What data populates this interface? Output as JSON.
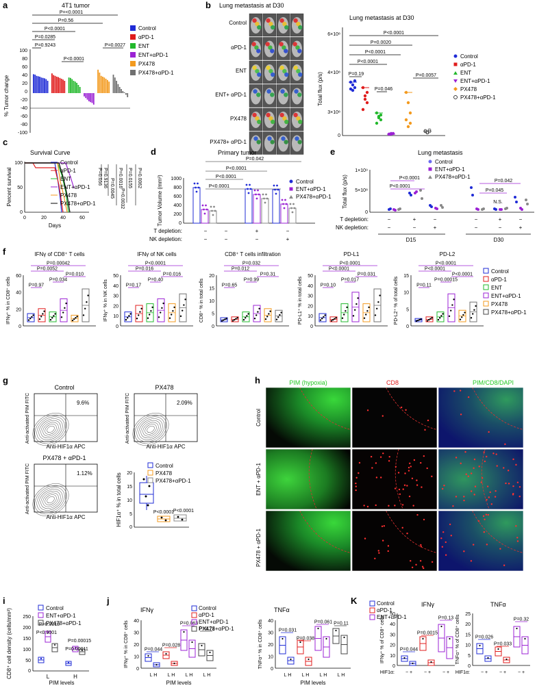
{
  "panels": {
    "a": {
      "label": "a",
      "title": "4T1 tumor",
      "ylabel": "% Tumor change",
      "yticks": [
        "100",
        "80",
        "60",
        "40",
        "20",
        "0",
        "-20",
        "-40",
        "-60",
        "-80",
        "-100"
      ],
      "pvalues": [
        "P=<0.0001",
        "P=0.56",
        "P<0.0001",
        "P=0.0285",
        "P=0.9243",
        "P<0.0001",
        "P=0.0027"
      ],
      "legend": [
        {
          "name": "Control",
          "color": "#1f2bd6"
        },
        {
          "name": "αPD-1",
          "color": "#e01c1c"
        },
        {
          "name": "ENT",
          "color": "#22b82c"
        },
        {
          "name": "ENT+αPD-1",
          "color": "#9b22d4"
        },
        {
          "name": "PX478",
          "color": "#f39a1e"
        },
        {
          "name": "PX478+αPD-1",
          "color": "#707070"
        }
      ],
      "waterfall": [
        {
          "group": 0,
          "values": [
            46,
            45,
            42,
            41,
            40,
            38,
            37,
            36,
            34,
            30
          ]
        },
        {
          "group": 1,
          "values": [
            48,
            44,
            42,
            40,
            39,
            37,
            35,
            33,
            30
          ]
        },
        {
          "group": 2,
          "values": [
            38,
            37,
            34,
            30,
            28,
            25,
            20,
            15
          ]
        },
        {
          "group": 3,
          "values": [
            -8,
            -12,
            -16,
            -20,
            -22,
            -24,
            -28
          ]
        },
        {
          "group": 4,
          "values": [
            57,
            50,
            42,
            40,
            38,
            35,
            32,
            28
          ]
        },
        {
          "group": 5,
          "values": [
            45,
            38,
            30,
            22,
            15,
            10,
            5,
            2,
            -4,
            -10
          ]
        }
      ]
    },
    "b": {
      "label": "b",
      "image_title": "Lung metastasis at D30",
      "row_labels": [
        "Control",
        "αPD-1",
        "ENT",
        "ENT+ αPD-1",
        "PX478",
        "PX478+ αPD-1"
      ],
      "chart_title": "Lung metastasis at D30",
      "ylabel": "Total flux (p/s)",
      "yticks": [
        "6×10⁸",
        "4×10⁸",
        "3×10⁸",
        "0"
      ],
      "pvalues": [
        "P<0.0001",
        "P=0.0020",
        "P<0.0001",
        "P<0.0001",
        "P=0.19",
        "P=0.046",
        "P=0.0057"
      ],
      "legend": [
        "Control",
        "αPD-1",
        "ENT",
        "ENT+αPD-1",
        "PX478",
        "PX478+αPD-1"
      ]
    },
    "c": {
      "label": "c",
      "title": "Survival Curve",
      "ylabel": "Percent survival",
      "xlabel": "Days",
      "yticks": [
        "100",
        "50",
        "0"
      ],
      "xticks": [
        "0",
        "20",
        "40",
        "60"
      ],
      "legend": [
        "Control",
        "αPD-1",
        "ENT",
        "ENT+αPD-1",
        "PX478",
        "PX478+αPD-1"
      ],
      "pvalues": [
        "P=0.056",
        "P=0.9136",
        "P=0.0045",
        "P=0.0016",
        "P=0.0155",
        "P=0.0032",
        "P=0.0062"
      ]
    },
    "d": {
      "label": "d",
      "title": "Primary tumor",
      "ylabel": "Tumor Volume (mm³)",
      "yticks": [
        "1000",
        "800",
        "600",
        "400",
        "200",
        "0"
      ],
      "pvalues": [
        "P=0.042",
        "P<0.0001",
        "P<0.0001",
        "P<0.0001"
      ],
      "legend": [
        "Control",
        "ENT+αPD-1",
        "PX478+αPD-1"
      ],
      "row_labels": [
        "T depletion:",
        "NK depletion:"
      ],
      "row_values": [
        [
          "−",
          "−",
          "+",
          "−"
        ],
        [
          "−",
          "−",
          "−",
          "+"
        ]
      ]
    },
    "e": {
      "label": "e",
      "title": "Lung metastasis",
      "ylabel": "Total flux (p/s)",
      "yticks": [
        "1×10⁹",
        "5×10⁸",
        "0"
      ],
      "pvalues": [
        "P<0.0001",
        "P<0.0001",
        "P=0.042",
        "P=0.045"
      ],
      "ns": "N.S.",
      "legend": [
        "Control",
        "ENT+αPD-1",
        "PX478+αPD-1"
      ],
      "row_labels": [
        "T depletion:",
        "NK depletion:"
      ],
      "row_values": [
        [
          "−",
          "+",
          "−",
          "−",
          "+",
          "−"
        ],
        [
          "−",
          "−",
          "+",
          "−",
          "−",
          "+"
        ]
      ],
      "groups": [
        "D15",
        "D30"
      ]
    },
    "f": {
      "label": "f",
      "subplots": [
        {
          "title": "IFNγ of CD8⁺ T cells",
          "ylabel": "IFNγ⁺ % in CD8⁺ cells",
          "yticks": [
            "60",
            "40",
            "20",
            "0"
          ],
          "pvalues": [
            "P=0.00042",
            "P=0.0052",
            "P=0.010",
            "P=0.034",
            "P=0.97"
          ]
        },
        {
          "title": "IFNγ of NK cells",
          "ylabel": "IFNγ⁺ % in NK cells",
          "yticks": [
            "50",
            "40",
            "30",
            "20",
            "10",
            "0"
          ],
          "pvalues": [
            "P<0.0001",
            "P=0.016",
            "P=0.016",
            "P=0.40",
            "P=0.17"
          ]
        },
        {
          "title": "CD8⁺ T cells infiltration",
          "ylabel": "CD8⁺ % in total cells",
          "yticks": [
            "20",
            "15",
            "10",
            "5",
            "0"
          ],
          "pvalues": [
            "P=0.032",
            "P=0.012",
            "P=0.31",
            "P=0.99",
            "P=0.65"
          ]
        },
        {
          "title": "PD-L1",
          "ylabel": "PD-L1⁺ % in total cells",
          "yticks": [
            "50",
            "40",
            "30",
            "20",
            "10",
            "0"
          ],
          "pvalues": [
            "P<0.0001",
            "P<0.0001",
            "P=0.031",
            "P=0.017",
            "P=0.10"
          ]
        },
        {
          "title": "PD-L2",
          "ylabel": "PD-L2⁺ % of total cells",
          "yticks": [
            "15",
            "10",
            "5",
            "0"
          ],
          "pvalues": [
            "P<0.0001",
            "P<0.0001",
            "P<0.0001",
            "P=0.00015",
            "P=0.11"
          ]
        }
      ],
      "legend": [
        "Control",
        "αPD-1",
        "ENT",
        "ENT+αPD-1",
        "PX478",
        "PX478+αPD-1"
      ]
    },
    "g": {
      "label": "g",
      "plots": [
        {
          "title": "Control",
          "pct": "9.6%"
        },
        {
          "title": "PX478",
          "pct": "2.09%"
        },
        {
          "title": "PX478 + αPD-1",
          "pct": "1.12%"
        }
      ],
      "yaxis": "Anti-activated PIM FITC",
      "xaxis": "Anti-HIF1α APC",
      "box_ylabel": "HIF1α⁺ % in total cells",
      "box_yticks": [
        "20",
        "15",
        "10",
        "5",
        "0"
      ],
      "box_pvalues": [
        "P<0.0001",
        "P<0.0001"
      ],
      "legend": [
        "Control",
        "PX478",
        "PX478+αPD-1"
      ]
    },
    "h": {
      "label": "h",
      "col_titles": [
        "PIM (hypoxia)",
        "CD8",
        "PIM/CD8/DAPI"
      ],
      "row_labels": [
        "Control",
        "ENT + αPD-1",
        "PX478 + αPD-1"
      ]
    },
    "i": {
      "label": "i",
      "ylabel": "CD8⁺ cell density (cells/mm²)",
      "yticks": [
        "250",
        "200",
        "150",
        "100",
        "50",
        "0"
      ],
      "xlabel": "PIM levels",
      "xticks": [
        "L",
        "H"
      ],
      "pvalues": [
        "P=0.0018",
        "P<0.0001",
        "P=0.00015",
        "P=0.00011"
      ],
      "legend": [
        "Control",
        "ENT+αPD-1",
        "PX478+αPD-1"
      ]
    },
    "j": {
      "label": "j",
      "plots": [
        {
          "title": "IFNγ",
          "ylabel": "IFNγ⁺ % in CD8⁺ cells",
          "yticks": [
            "40",
            "30",
            "20",
            "10",
            "0"
          ],
          "pvalues": [
            "P=0.044",
            "P=0.028",
            "P=0.063",
            "P=0.21"
          ]
        },
        {
          "title": "TNFα",
          "ylabel": "TNFα⁺ % in CD8⁺ cells",
          "yticks": [
            "40",
            "30",
            "20",
            "10",
            "0"
          ],
          "pvalues": [
            "P=0.031",
            "P=0.038",
            "P=0.061",
            "P=0.11"
          ]
        }
      ],
      "xlabel": "PIM levels",
      "xtick": "L H",
      "legend": [
        "Control",
        "αPD-1",
        "ENT+αPD-1",
        "PX478+αPD-1"
      ]
    },
    "k": {
      "label": "K",
      "plots": [
        {
          "title": "IFNγ",
          "ylabel": "IFNγ⁺ % of CD8⁺ cells",
          "yticks": [
            "50",
            "40",
            "30",
            "20",
            "10",
            "0"
          ],
          "pvalues": [
            "P=0.044",
            "P=0.0015",
            "P=0.13"
          ]
        },
        {
          "title": "TNFα",
          "ylabel": "TNFα⁺ % of CD8⁺ cells",
          "yticks": [
            "25",
            "20",
            "15",
            "10",
            "5",
            "0"
          ],
          "pvalues": [
            "P=0.026",
            "P=0.033",
            "P=0.32"
          ]
        }
      ],
      "row_label": "HIF1α:",
      "xtick": "−  +",
      "legend": [
        "Control",
        "αPD-1",
        "ENT+αPD-1"
      ]
    }
  },
  "colors": {
    "control": "#1f2bd6",
    "apd1": "#e01c1c",
    "ent": "#22b82c",
    "ent_apd1": "#9b22d4",
    "px478": "#f39a1e",
    "px478_apd1": "#707070",
    "sig": "#8a2be2",
    "gray": "#888888"
  }
}
